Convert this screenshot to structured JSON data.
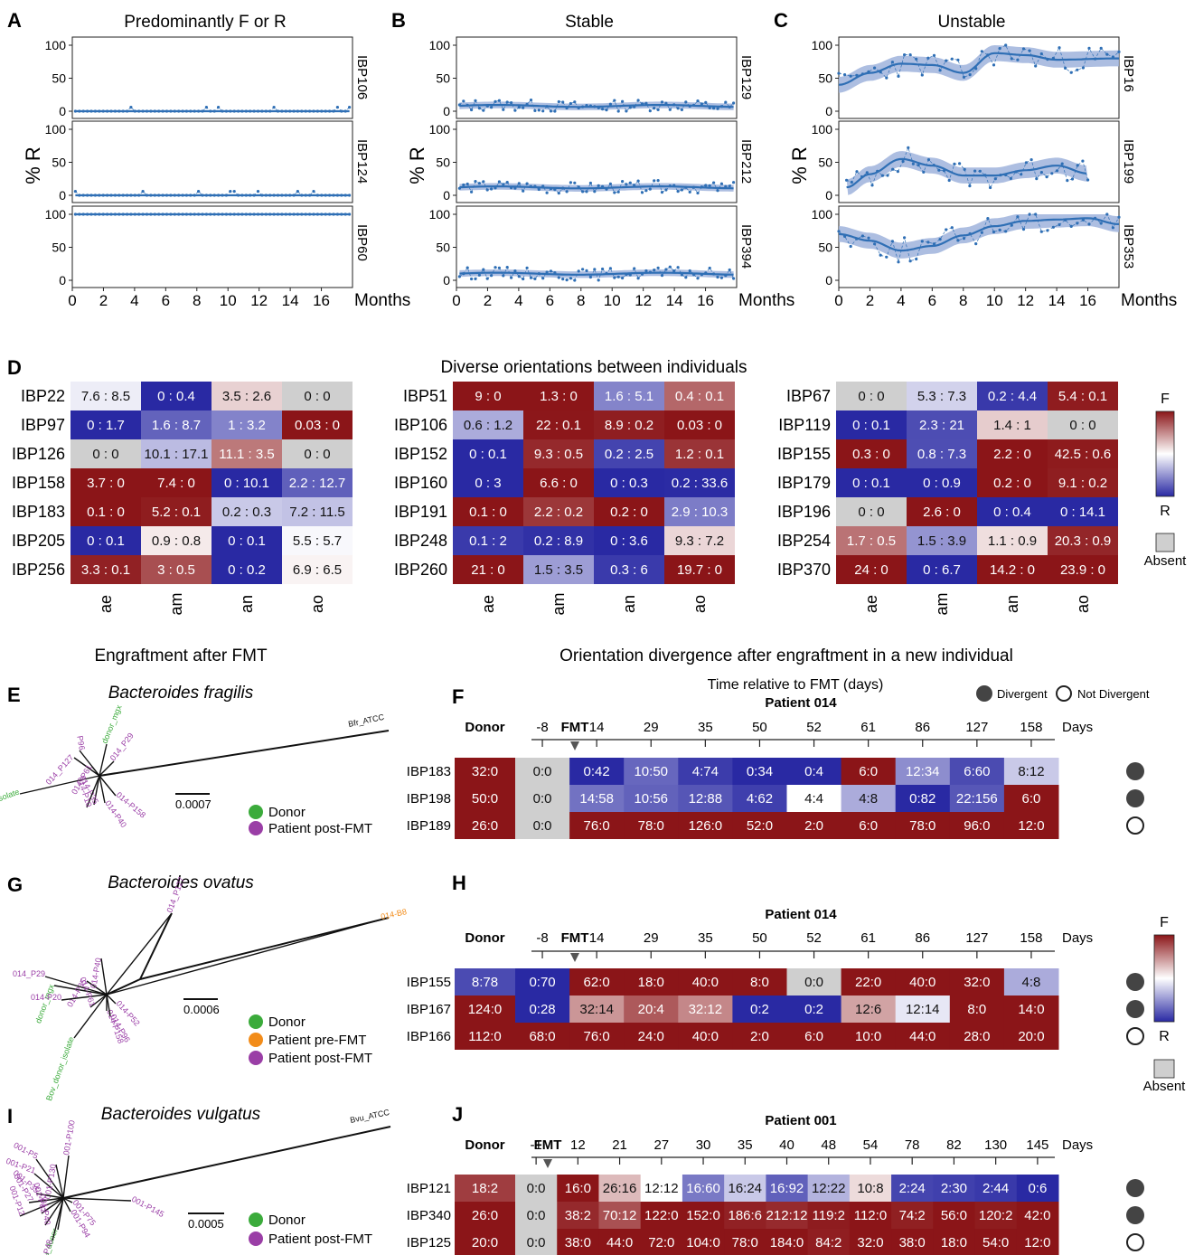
{
  "colors": {
    "F": "#8b1518",
    "R": "#2929a3",
    "absent": "#cfcfcf",
    "line": "#2f6fb5",
    "ribbon": "#9fb3dc",
    "donor": "#3bab3b",
    "pre": "#f28c1a",
    "post": "#9a3ea6"
  },
  "panel_letters": {
    "A": "A",
    "B": "B",
    "C": "C",
    "D": "D",
    "E": "E",
    "F": "F",
    "G": "G",
    "H": "H",
    "I": "I",
    "J": "J"
  },
  "top": {
    "panels": [
      {
        "title": "Predominantly F or R",
        "ylabel": "% R",
        "xlabel": "Months",
        "rows": [
          {
            "label": "IBP106",
            "kind": "const",
            "level": 0
          },
          {
            "label": "IBP124",
            "kind": "const",
            "level": 0
          },
          {
            "label": "IBP60",
            "kind": "const",
            "level": 100
          }
        ]
      },
      {
        "title": "Stable",
        "ylabel": "% R",
        "xlabel": "Months",
        "rows": [
          {
            "label": "IBP129",
            "kind": "stable",
            "level": 8
          },
          {
            "label": "IBP212",
            "kind": "stable",
            "level": 12
          },
          {
            "label": "IBP394",
            "kind": "stable",
            "level": 10
          }
        ]
      },
      {
        "title": "Unstable",
        "ylabel": "% R",
        "xlabel": "Months",
        "rows": [
          {
            "label": "IBP16",
            "kind": "curve",
            "pts": [
              [
                0,
                40
              ],
              [
                2,
                58
              ],
              [
                4,
                72
              ],
              [
                6,
                70
              ],
              [
                8,
                58
              ],
              [
                10,
                88
              ],
              [
                12,
                85
              ],
              [
                14,
                78
              ],
              [
                18,
                80
              ]
            ]
          },
          {
            "label": "IBP199",
            "kind": "curve",
            "pts": [
              [
                0.5,
                12
              ],
              [
                2,
                32
              ],
              [
                4,
                55
              ],
              [
                6,
                45
              ],
              [
                8,
                30
              ],
              [
                10,
                30
              ],
              [
                12,
                38
              ],
              [
                14,
                45
              ],
              [
                16,
                33
              ]
            ]
          },
          {
            "label": "IBP353",
            "kind": "curve",
            "pts": [
              [
                0,
                70
              ],
              [
                2,
                60
              ],
              [
                4,
                45
              ],
              [
                6,
                52
              ],
              [
                8,
                68
              ],
              [
                10,
                82
              ],
              [
                12,
                90
              ],
              [
                14,
                92
              ],
              [
                16,
                94
              ],
              [
                18,
                85
              ]
            ]
          }
        ]
      }
    ],
    "yticks": [
      "0",
      "50",
      "100"
    ],
    "xticks": [
      "0",
      "2",
      "4",
      "6",
      "8",
      "10",
      "12",
      "14",
      "16"
    ]
  },
  "d": {
    "title": "Diverse orientations between individuals",
    "cols": [
      "ae",
      "am",
      "an",
      "ao"
    ],
    "legend": {
      "F": "F",
      "R": "R",
      "absent": "Absent"
    },
    "blocks": [
      {
        "rows": [
          {
            "label": "IBP22",
            "cells": [
              "7.6 : 8.5",
              "0 : 0.4",
              "3.5 : 2.6",
              "0 : 0"
            ]
          },
          {
            "label": "IBP97",
            "cells": [
              "0 : 1.7",
              "1.6 : 8.7",
              "1 : 3.2",
              "0.03 : 0"
            ]
          },
          {
            "label": "IBP126",
            "cells": [
              "0 : 0",
              "10.1 : 17.1",
              "11.1 : 3.5",
              "0 : 0"
            ]
          },
          {
            "label": "IBP158",
            "cells": [
              "3.7 : 0",
              "7.4 : 0",
              "0 : 10.1",
              "2.2 : 12.7"
            ]
          },
          {
            "label": "IBP183",
            "cells": [
              "0.1 : 0",
              "5.2 : 0.1",
              "0.2 : 0.3",
              "7.2 : 11.5"
            ]
          },
          {
            "label": "IBP205",
            "cells": [
              "0 : 0.1",
              "0.9 : 0.8",
              "0 : 0.1",
              "5.5 : 5.7"
            ]
          },
          {
            "label": "IBP256",
            "cells": [
              "3.3 : 0.1",
              "3 : 0.5",
              "0 : 0.2",
              "6.9 : 6.5"
            ]
          }
        ]
      },
      {
        "rows": [
          {
            "label": "IBP51",
            "cells": [
              "9 : 0",
              "1.3 : 0",
              "1.6 : 5.1",
              "0.4 : 0.1"
            ]
          },
          {
            "label": "IBP106",
            "cells": [
              "0.6 : 1.2",
              "22 : 0.1",
              "8.9 : 0.2",
              "0.03 : 0"
            ]
          },
          {
            "label": "IBP152",
            "cells": [
              "0 : 0.1",
              "9.3 : 0.5",
              "0.2 : 2.5",
              "1.2 : 0.1"
            ]
          },
          {
            "label": "IBP160",
            "cells": [
              "0 : 3",
              "6.6 : 0",
              "0 : 0.3",
              "0.2 : 33.6"
            ]
          },
          {
            "label": "IBP191",
            "cells": [
              "0.1 : 0",
              "2.2 : 0.2",
              "0.2 : 0",
              "2.9 : 10.3"
            ]
          },
          {
            "label": "IBP248",
            "cells": [
              "0.1 : 2",
              "0.2 : 8.9",
              "0 : 3.6",
              "9.3 : 7.2"
            ]
          },
          {
            "label": "IBP260",
            "cells": [
              "21 : 0",
              "1.5 : 3.5",
              "0.3 : 6",
              "19.7 : 0"
            ]
          }
        ]
      },
      {
        "rows": [
          {
            "label": "IBP67",
            "cells": [
              "0 : 0",
              "5.3 : 7.3",
              "0.2 : 4.4",
              "5.4 : 0.1"
            ]
          },
          {
            "label": "IBP119",
            "cells": [
              "0 : 0.1",
              "2.3 : 21",
              "1.4 : 1",
              "0 : 0"
            ]
          },
          {
            "label": "IBP155",
            "cells": [
              "0.3 : 0",
              "0.8 : 7.3",
              "2.2 : 0",
              "42.5 : 0.6"
            ]
          },
          {
            "label": "IBP179",
            "cells": [
              "0 : 0.1",
              "0 : 0.9",
              "0.2 : 0",
              "9.1 : 0.2"
            ]
          },
          {
            "label": "IBP196",
            "cells": [
              "0 : 0",
              "2.6 : 0",
              "0 : 0.4",
              "0 : 14.1"
            ]
          },
          {
            "label": "IBP254",
            "cells": [
              "1.7 : 0.5",
              "1.5 : 3.9",
              "1.1 : 0.9",
              "20.3 : 0.9"
            ]
          },
          {
            "label": "IBP370",
            "cells": [
              "24 : 0",
              "0 : 6.7",
              "14.2 : 0",
              "23.9 : 0"
            ]
          }
        ]
      }
    ]
  },
  "left_section_title": "Engraftment after FMT",
  "right_section_title": "Orientation divergence after engraftment in a new individual",
  "time_caption": "Time relative to FMT (days)",
  "status_legend": {
    "divergent": "Divergent",
    "not_divergent": "Not Divergent"
  },
  "heat_legend": {
    "F": "F",
    "R": "R",
    "absent": "Absent"
  },
  "trees": [
    {
      "title": "Bacteroides fragilis",
      "scale": "0.0007",
      "legend": [
        {
          "label": "Donor",
          "color": "#3bab3b"
        },
        {
          "label": "Patient post-FMT",
          "color": "#9a3ea6"
        }
      ],
      "leaves": [
        {
          "t": "Bfr_ATCC",
          "c": "#111"
        },
        {
          "t": "Bfr_donor_isolate",
          "c": "#3bab3b"
        },
        {
          "t": "donor_mgx",
          "c": "#3bab3b"
        },
        {
          "t": "014_P29",
          "c": "#9a3ea6"
        },
        {
          "t": "014_P127",
          "c": "#9a3ea6"
        },
        {
          "t": "014_P61",
          "c": "#9a3ea6"
        },
        {
          "t": "014-P158",
          "c": "#9a3ea6"
        },
        {
          "t": "014-P40",
          "c": "#9a3ea6"
        },
        {
          "t": "014-P35",
          "c": "#9a3ea6"
        },
        {
          "t": "014-P10",
          "c": "#9a3ea6"
        },
        {
          "t": "P96",
          "c": "#9a3ea6"
        }
      ]
    },
    {
      "title": "Bacteroides ovatus",
      "scale": "0.0006",
      "legend": [
        {
          "label": "Donor",
          "color": "#3bab3b"
        },
        {
          "label": "Patient pre-FMT",
          "color": "#f28c1a"
        },
        {
          "label": "Patient post-FMT",
          "color": "#9a3ea6"
        }
      ],
      "leaves": [
        {
          "t": "014-B8",
          "c": "#f28c1a"
        },
        {
          "t": "014_P127",
          "c": "#9a3ea6"
        },
        {
          "t": "donor_mgx",
          "c": "#3bab3b"
        },
        {
          "t": "014-P35",
          "c": "#9a3ea6"
        },
        {
          "t": "014_P29",
          "c": "#9a3ea6"
        },
        {
          "t": "014-P40",
          "c": "#9a3ea6"
        },
        {
          "t": "014-P20",
          "c": "#9a3ea6"
        },
        {
          "t": "014-P61",
          "c": "#9a3ea6"
        },
        {
          "t": "Bov_donor_isolate",
          "c": "#3bab3b"
        },
        {
          "t": "014-P158",
          "c": "#9a3ea6"
        },
        {
          "t": "014-P52",
          "c": "#9a3ea6"
        },
        {
          "t": "014-P96",
          "c": "#9a3ea6"
        }
      ]
    },
    {
      "title": "Bacteroides vulgatus",
      "scale": "0.0005",
      "legend": [
        {
          "label": "Donor",
          "color": "#3bab3b"
        },
        {
          "label": "Patient post-FMT",
          "color": "#9a3ea6"
        }
      ],
      "leaves": [
        {
          "t": "Bvu_ATCC",
          "c": "#111"
        },
        {
          "t": "001-P145",
          "c": "#9a3ea6"
        },
        {
          "t": "001-P5",
          "c": "#9a3ea6"
        },
        {
          "t": "001-P21",
          "c": "#9a3ea6"
        },
        {
          "t": "001-P130",
          "c": "#9a3ea6"
        },
        {
          "t": "001-P100",
          "c": "#9a3ea6"
        },
        {
          "t": "001-P35",
          "c": "#9a3ea6"
        },
        {
          "t": "001-P27",
          "c": "#9a3ea6"
        },
        {
          "t": "001-P12",
          "c": "#9a3ea6"
        },
        {
          "t": "001-P82",
          "c": "#9a3ea6"
        },
        {
          "t": "001-P40",
          "c": "#9a3ea6"
        },
        {
          "t": "001-P75",
          "c": "#9a3ea6"
        },
        {
          "t": "001-P94",
          "c": "#9a3ea6"
        },
        {
          "t": "Bvu_donor",
          "c": "#3bab3b"
        },
        {
          "t": "001-P48",
          "c": "#9a3ea6"
        }
      ]
    }
  ],
  "fmt": [
    {
      "patient": "Patient 014",
      "donor_label": "Donor",
      "fmt_label": "FMT",
      "days_label": "Days",
      "days": [
        "-8",
        "14",
        "29",
        "35",
        "50",
        "52",
        "61",
        "86",
        "127",
        "158"
      ],
      "rows": [
        {
          "label": "IBP183",
          "donor": "32:0",
          "cells": [
            "0:0",
            "0:42",
            "10:50",
            "4:74",
            "0:34",
            "0:4",
            "6:0",
            "12:34",
            "6:60",
            "8:12"
          ],
          "divergent": true
        },
        {
          "label": "IBP198",
          "donor": "50:0",
          "cells": [
            "0:0",
            "14:58",
            "10:56",
            "12:88",
            "4:62",
            "4:4",
            "4:8",
            "0:82",
            "22:156",
            "6:0"
          ],
          "divergent": true
        },
        {
          "label": "IBP189",
          "donor": "26:0",
          "cells": [
            "0:0",
            "76:0",
            "78:0",
            "126:0",
            "52:0",
            "2:0",
            "6:0",
            "78:0",
            "96:0",
            "12:0"
          ],
          "divergent": false
        }
      ]
    },
    {
      "patient": "Patient 014",
      "donor_label": "Donor",
      "fmt_label": "FMT",
      "days_label": "Days",
      "days": [
        "-8",
        "14",
        "29",
        "35",
        "50",
        "52",
        "61",
        "86",
        "127",
        "158"
      ],
      "rows": [
        {
          "label": "IBP155",
          "donor": "8:78",
          "cells": [
            "0:70",
            "62:0",
            "18:0",
            "40:0",
            "8:0",
            "0:0",
            "22:0",
            "40:0",
            "32:0",
            "4:8"
          ],
          "divergent": true
        },
        {
          "label": "IBP167",
          "donor": "124:0",
          "cells": [
            "0:28",
            "32:14",
            "20:4",
            "32:12",
            "0:2",
            "0:2",
            "12:6",
            "12:14",
            "8:0",
            "14:0"
          ],
          "divergent": true
        },
        {
          "label": "IBP166",
          "donor": "112:0",
          "cells": [
            "68:0",
            "76:0",
            "24:0",
            "40:0",
            "2:0",
            "6:0",
            "10:0",
            "44:0",
            "28:0",
            "20:0"
          ],
          "divergent": false
        }
      ]
    },
    {
      "patient": "Patient 001",
      "donor_label": "Donor",
      "fmt_label": "FMT",
      "days_label": "Days",
      "days": [
        "-1",
        "12",
        "21",
        "27",
        "30",
        "35",
        "40",
        "48",
        "54",
        "78",
        "82",
        "130",
        "145"
      ],
      "rows": [
        {
          "label": "IBP121",
          "donor": "18:2",
          "cells": [
            "0:0",
            "16:0",
            "26:16",
            "12:12",
            "16:60",
            "16:24",
            "16:92",
            "12:22",
            "10:8",
            "2:24",
            "2:30",
            "2:44",
            "0:6"
          ],
          "divergent": true
        },
        {
          "label": "IBP340",
          "donor": "26:0",
          "cells": [
            "0:0",
            "38:2",
            "70:12",
            "122:0",
            "152:0",
            "186:6",
            "212:12",
            "119:2",
            "112:0",
            "74:2",
            "56:0",
            "120:2",
            "42:0"
          ],
          "divergent": true
        },
        {
          "label": "IBP125",
          "donor": "20:0",
          "cells": [
            "0:0",
            "38:0",
            "44:0",
            "72:0",
            "104:0",
            "78:0",
            "184:0",
            "84:2",
            "32:0",
            "38:0",
            "18:0",
            "54:0",
            "12:0"
          ],
          "divergent": false
        }
      ]
    }
  ]
}
